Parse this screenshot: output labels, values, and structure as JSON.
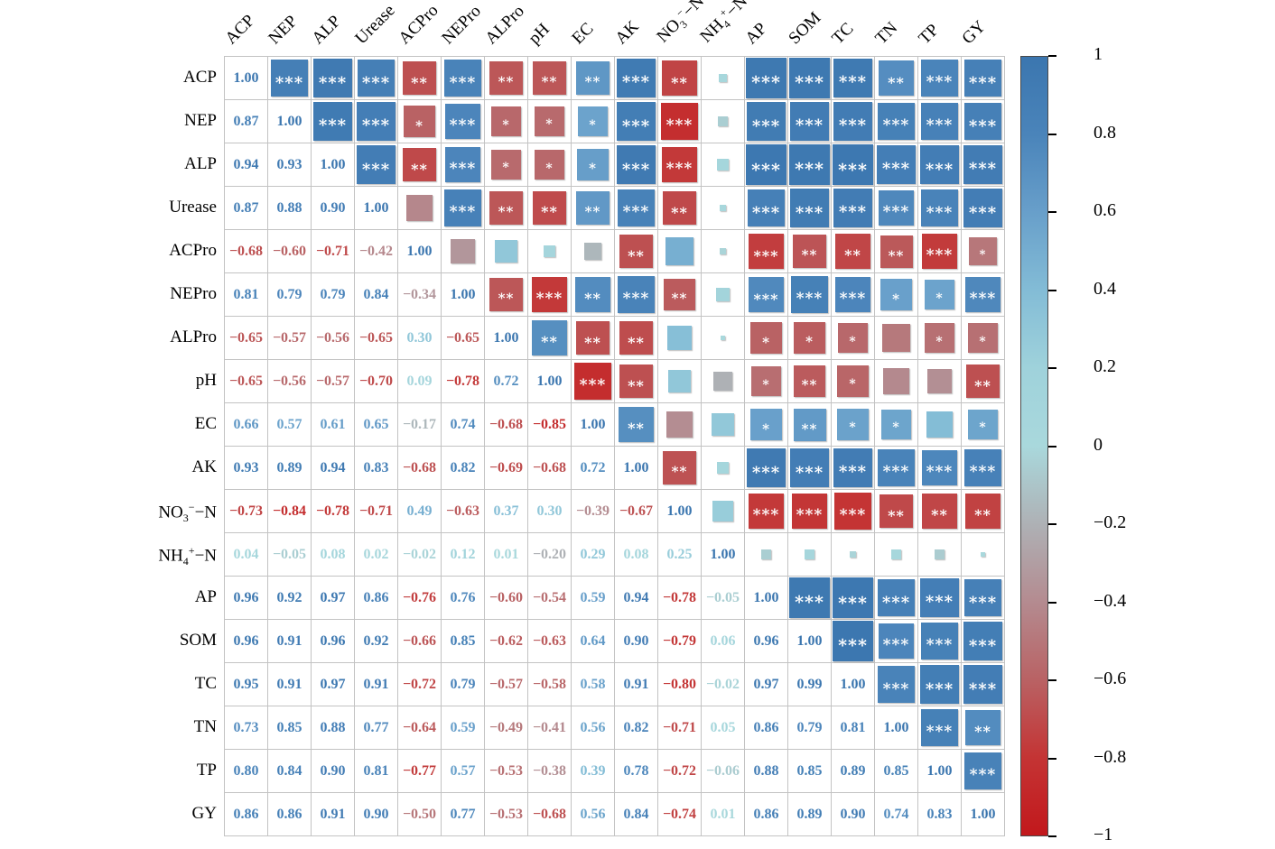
{
  "figure": {
    "background": "#ffffff",
    "gridline_color": "#c3c3c3",
    "star_color": "#ffffff"
  },
  "chart_data": {
    "type": "heatmap",
    "subtype": "correlation-matrix",
    "layout": {
      "lower_triangle": "correlation coefficients as numbers",
      "diagonal": "1.00",
      "upper_triangle": "colored squares sized by |r| with significance stars",
      "legend_position": "right colorbar"
    },
    "variables": [
      "ACP",
      "NEP",
      "ALP",
      "Urease",
      "ACPro",
      "NEPro",
      "ALPro",
      "pH",
      "EC",
      "AK",
      "NO3--N",
      "NH4+-N",
      "AP",
      "SOM",
      "TC",
      "TN",
      "TP",
      "GY"
    ],
    "label_parts": [
      [
        [
          "ACP",
          ""
        ]
      ],
      [
        [
          "NEP",
          ""
        ]
      ],
      [
        [
          "ALP",
          ""
        ]
      ],
      [
        [
          "Urease",
          ""
        ]
      ],
      [
        [
          "ACPro",
          ""
        ]
      ],
      [
        [
          "NEPro",
          ""
        ]
      ],
      [
        [
          "ALPro",
          ""
        ]
      ],
      [
        [
          "pH",
          ""
        ]
      ],
      [
        [
          "EC",
          ""
        ]
      ],
      [
        [
          "AK",
          ""
        ]
      ],
      [
        [
          "NO",
          ""
        ],
        [
          "3",
          "sub"
        ],
        [
          "-",
          "sup"
        ],
        [
          "-N",
          ""
        ]
      ],
      [
        [
          "NH",
          ""
        ],
        [
          "4",
          "sub"
        ],
        [
          "+",
          "sup"
        ],
        [
          "-N",
          ""
        ]
      ],
      [
        [
          "AP",
          ""
        ]
      ],
      [
        [
          "SOM",
          ""
        ]
      ],
      [
        [
          "TC",
          ""
        ]
      ],
      [
        [
          "TN",
          ""
        ]
      ],
      [
        [
          "TP",
          ""
        ]
      ],
      [
        [
          "GY",
          ""
        ]
      ]
    ],
    "matrix_lower": [
      [
        "1.00"
      ],
      [
        "0.87",
        "1.00"
      ],
      [
        "0.94",
        "0.93",
        "1.00"
      ],
      [
        "0.87",
        "0.88",
        "0.90",
        "1.00"
      ],
      [
        "-0.68",
        "-0.60",
        "-0.71",
        "-0.42",
        "1.00"
      ],
      [
        "0.81",
        "0.79",
        "0.79",
        "0.84",
        "-0.34",
        "1.00"
      ],
      [
        "-0.65",
        "-0.57",
        "-0.56",
        "-0.65",
        "0.30",
        "-0.65",
        "1.00"
      ],
      [
        "-0.65",
        "-0.56",
        "-0.57",
        "-0.70",
        "0.09",
        "-0.78",
        "0.72",
        "1.00"
      ],
      [
        "0.66",
        "0.57",
        "0.61",
        "0.65",
        "-0.17",
        "0.74",
        "-0.68",
        "-0.85",
        "1.00"
      ],
      [
        "0.93",
        "0.89",
        "0.94",
        "0.83",
        "-0.68",
        "0.82",
        "-0.69",
        "-0.68",
        "0.72",
        "1.00"
      ],
      [
        "-0.73",
        "-0.84",
        "-0.78",
        "-0.71",
        "0.49",
        "-0.63",
        "0.37",
        "0.30",
        "-0.39",
        "-0.67",
        "1.00"
      ],
      [
        "0.04",
        "-0.05",
        "0.08",
        "0.02",
        "-0.02",
        "0.12",
        "0.01",
        "-0.20",
        "0.29",
        "0.08",
        "0.25",
        "1.00"
      ],
      [
        "0.96",
        "0.92",
        "0.97",
        "0.86",
        "-0.76",
        "0.76",
        "-0.60",
        "-0.54",
        "0.59",
        "0.94",
        "-0.78",
        "-0.05",
        "1.00"
      ],
      [
        "0.96",
        "0.91",
        "0.96",
        "0.92",
        "-0.66",
        "0.85",
        "-0.62",
        "-0.63",
        "0.64",
        "0.90",
        "-0.79",
        "0.06",
        "0.96",
        "1.00"
      ],
      [
        "0.95",
        "0.91",
        "0.97",
        "0.91",
        "-0.72",
        "0.79",
        "-0.57",
        "-0.58",
        "0.58",
        "0.91",
        "-0.80",
        "-0.02",
        "0.97",
        "0.99",
        "1.00"
      ],
      [
        "0.73",
        "0.85",
        "0.88",
        "0.77",
        "-0.64",
        "0.59",
        "-0.49",
        "-0.41",
        "0.56",
        "0.82",
        "-0.71",
        "0.05",
        "0.86",
        "0.79",
        "0.81",
        "1.00"
      ],
      [
        "0.80",
        "0.84",
        "0.90",
        "0.81",
        "-0.77",
        "0.57",
        "-0.53",
        "-0.38",
        "0.39",
        "0.78",
        "-0.72",
        "-0.06",
        "0.88",
        "0.85",
        "0.89",
        "0.85",
        "1.00"
      ],
      [
        "0.86",
        "0.86",
        "0.91",
        "0.90",
        "-0.50",
        "0.77",
        "-0.53",
        "-0.68",
        "0.56",
        "0.84",
        "-0.74",
        "0.01",
        "0.86",
        "0.89",
        "0.90",
        "0.74",
        "0.83",
        "1.00"
      ]
    ],
    "significance_upper": [
      [
        "***",
        "***",
        "***",
        "**",
        "***",
        "**",
        "**",
        "**",
        "***",
        "**",
        "",
        "***",
        "***",
        "***",
        "**",
        "***",
        "***"
      ],
      [
        "***",
        "***",
        "*",
        "***",
        "*",
        "*",
        "*",
        "***",
        "***",
        "",
        "***",
        "***",
        "***",
        "***",
        "***",
        "***"
      ],
      [
        "***",
        "**",
        "***",
        "*",
        "*",
        "*",
        "***",
        "***",
        "",
        "***",
        "***",
        "***",
        "***",
        "***",
        "***"
      ],
      [
        "",
        "***",
        "**",
        "**",
        "**",
        "***",
        "**",
        "",
        "***",
        "***",
        "***",
        "***",
        "***",
        "***"
      ],
      [
        "",
        "",
        "",
        "",
        "**",
        "",
        "",
        "***",
        "**",
        "**",
        "**",
        "***",
        "*"
      ],
      [
        "**",
        "***",
        "**",
        "***",
        "**",
        "",
        "***",
        "***",
        "***",
        "*",
        "*",
        "***"
      ],
      [
        "**",
        "**",
        "**",
        "",
        "",
        "*",
        "*",
        "*",
        "",
        "*",
        "*"
      ],
      [
        "***",
        "**",
        "",
        "",
        "*",
        "**",
        "*",
        "",
        "",
        "**"
      ],
      [
        "**",
        "",
        "",
        "*",
        "**",
        "*",
        "*",
        "",
        "*"
      ],
      [
        "**",
        "",
        "***",
        "***",
        "***",
        "***",
        "***",
        "***"
      ],
      [
        "",
        "***",
        "***",
        "***",
        "**",
        "**",
        "**"
      ],
      [
        "",
        "",
        "",
        "",
        "",
        ""
      ],
      [
        "***",
        "***",
        "***",
        "***",
        "***"
      ],
      [
        "***",
        "***",
        "***",
        "***"
      ],
      [
        "***",
        "***",
        "***"
      ],
      [
        "***",
        "**"
      ],
      [
        "***"
      ],
      []
    ],
    "colorbar": {
      "min": -1,
      "max": 1,
      "ticks": [
        "1",
        "0.8",
        "0.6",
        "0.4",
        "0.2",
        "0",
        "-0.2",
        "-0.4",
        "-0.6",
        "-0.8",
        "-1"
      ]
    },
    "palette_stops": [
      [
        -1.0,
        "#C2181C"
      ],
      [
        -0.8,
        "#C43434"
      ],
      [
        -0.6,
        "#B96264"
      ],
      [
        -0.4,
        "#B48B90"
      ],
      [
        -0.2,
        "#AEB1B5"
      ],
      [
        0.0,
        "#A9D8DC"
      ],
      [
        0.2,
        "#9FD2DB"
      ],
      [
        0.4,
        "#83BCD6"
      ],
      [
        0.6,
        "#689FCA"
      ],
      [
        0.8,
        "#4A84BA"
      ],
      [
        1.0,
        "#3B76AF"
      ]
    ]
  }
}
